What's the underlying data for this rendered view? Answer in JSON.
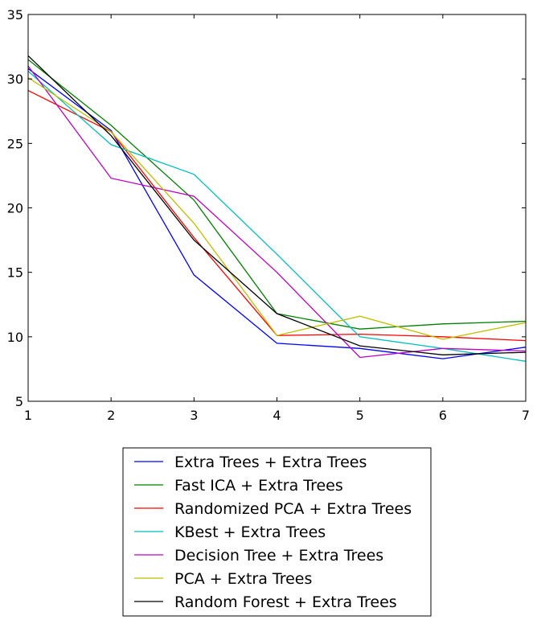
{
  "chart_data": {
    "type": "line",
    "title": "",
    "xlabel": "",
    "ylabel": "",
    "xlim": [
      1,
      7
    ],
    "ylim": [
      5,
      35
    ],
    "x": [
      1,
      2,
      3,
      4,
      5,
      6,
      7
    ],
    "xticks": [
      "1",
      "2",
      "3",
      "4",
      "5",
      "6",
      "7"
    ],
    "yticks": [
      "5",
      "10",
      "15",
      "20",
      "25",
      "30",
      "35"
    ],
    "grid": false,
    "legend_position": "below",
    "series": [
      {
        "name": "Extra Trees + Extra Trees",
        "color": "#0000ff",
        "values": [
          30.8,
          26.0,
          14.8,
          9.5,
          9.1,
          8.3,
          9.2
        ]
      },
      {
        "name": "Fast ICA + Extra Trees",
        "color": "#008000",
        "values": [
          31.5,
          26.4,
          20.6,
          11.8,
          10.6,
          11.0,
          11.2
        ]
      },
      {
        "name": "Randomized PCA + Extra Trees",
        "color": "#ff0000",
        "values": [
          29.1,
          25.9,
          17.7,
          10.1,
          10.2,
          10.0,
          9.7
        ]
      },
      {
        "name": "KBest + Extra Trees",
        "color": "#00bfbf",
        "values": [
          30.6,
          24.9,
          22.6,
          16.4,
          10.0,
          9.1,
          8.1
        ]
      },
      {
        "name": "Decision Tree + Extra Trees",
        "color": "#bf00bf",
        "values": [
          31.0,
          22.3,
          20.9,
          15.0,
          8.4,
          9.1,
          8.9
        ]
      },
      {
        "name": "PCA + Extra Trees",
        "color": "#bfbf00",
        "values": [
          30.1,
          25.9,
          18.8,
          10.1,
          11.6,
          9.8,
          11.1
        ]
      },
      {
        "name": "Random Forest + Extra Trees",
        "color": "#000000",
        "values": [
          31.8,
          25.6,
          17.5,
          11.8,
          9.3,
          8.6,
          8.8
        ]
      }
    ]
  }
}
